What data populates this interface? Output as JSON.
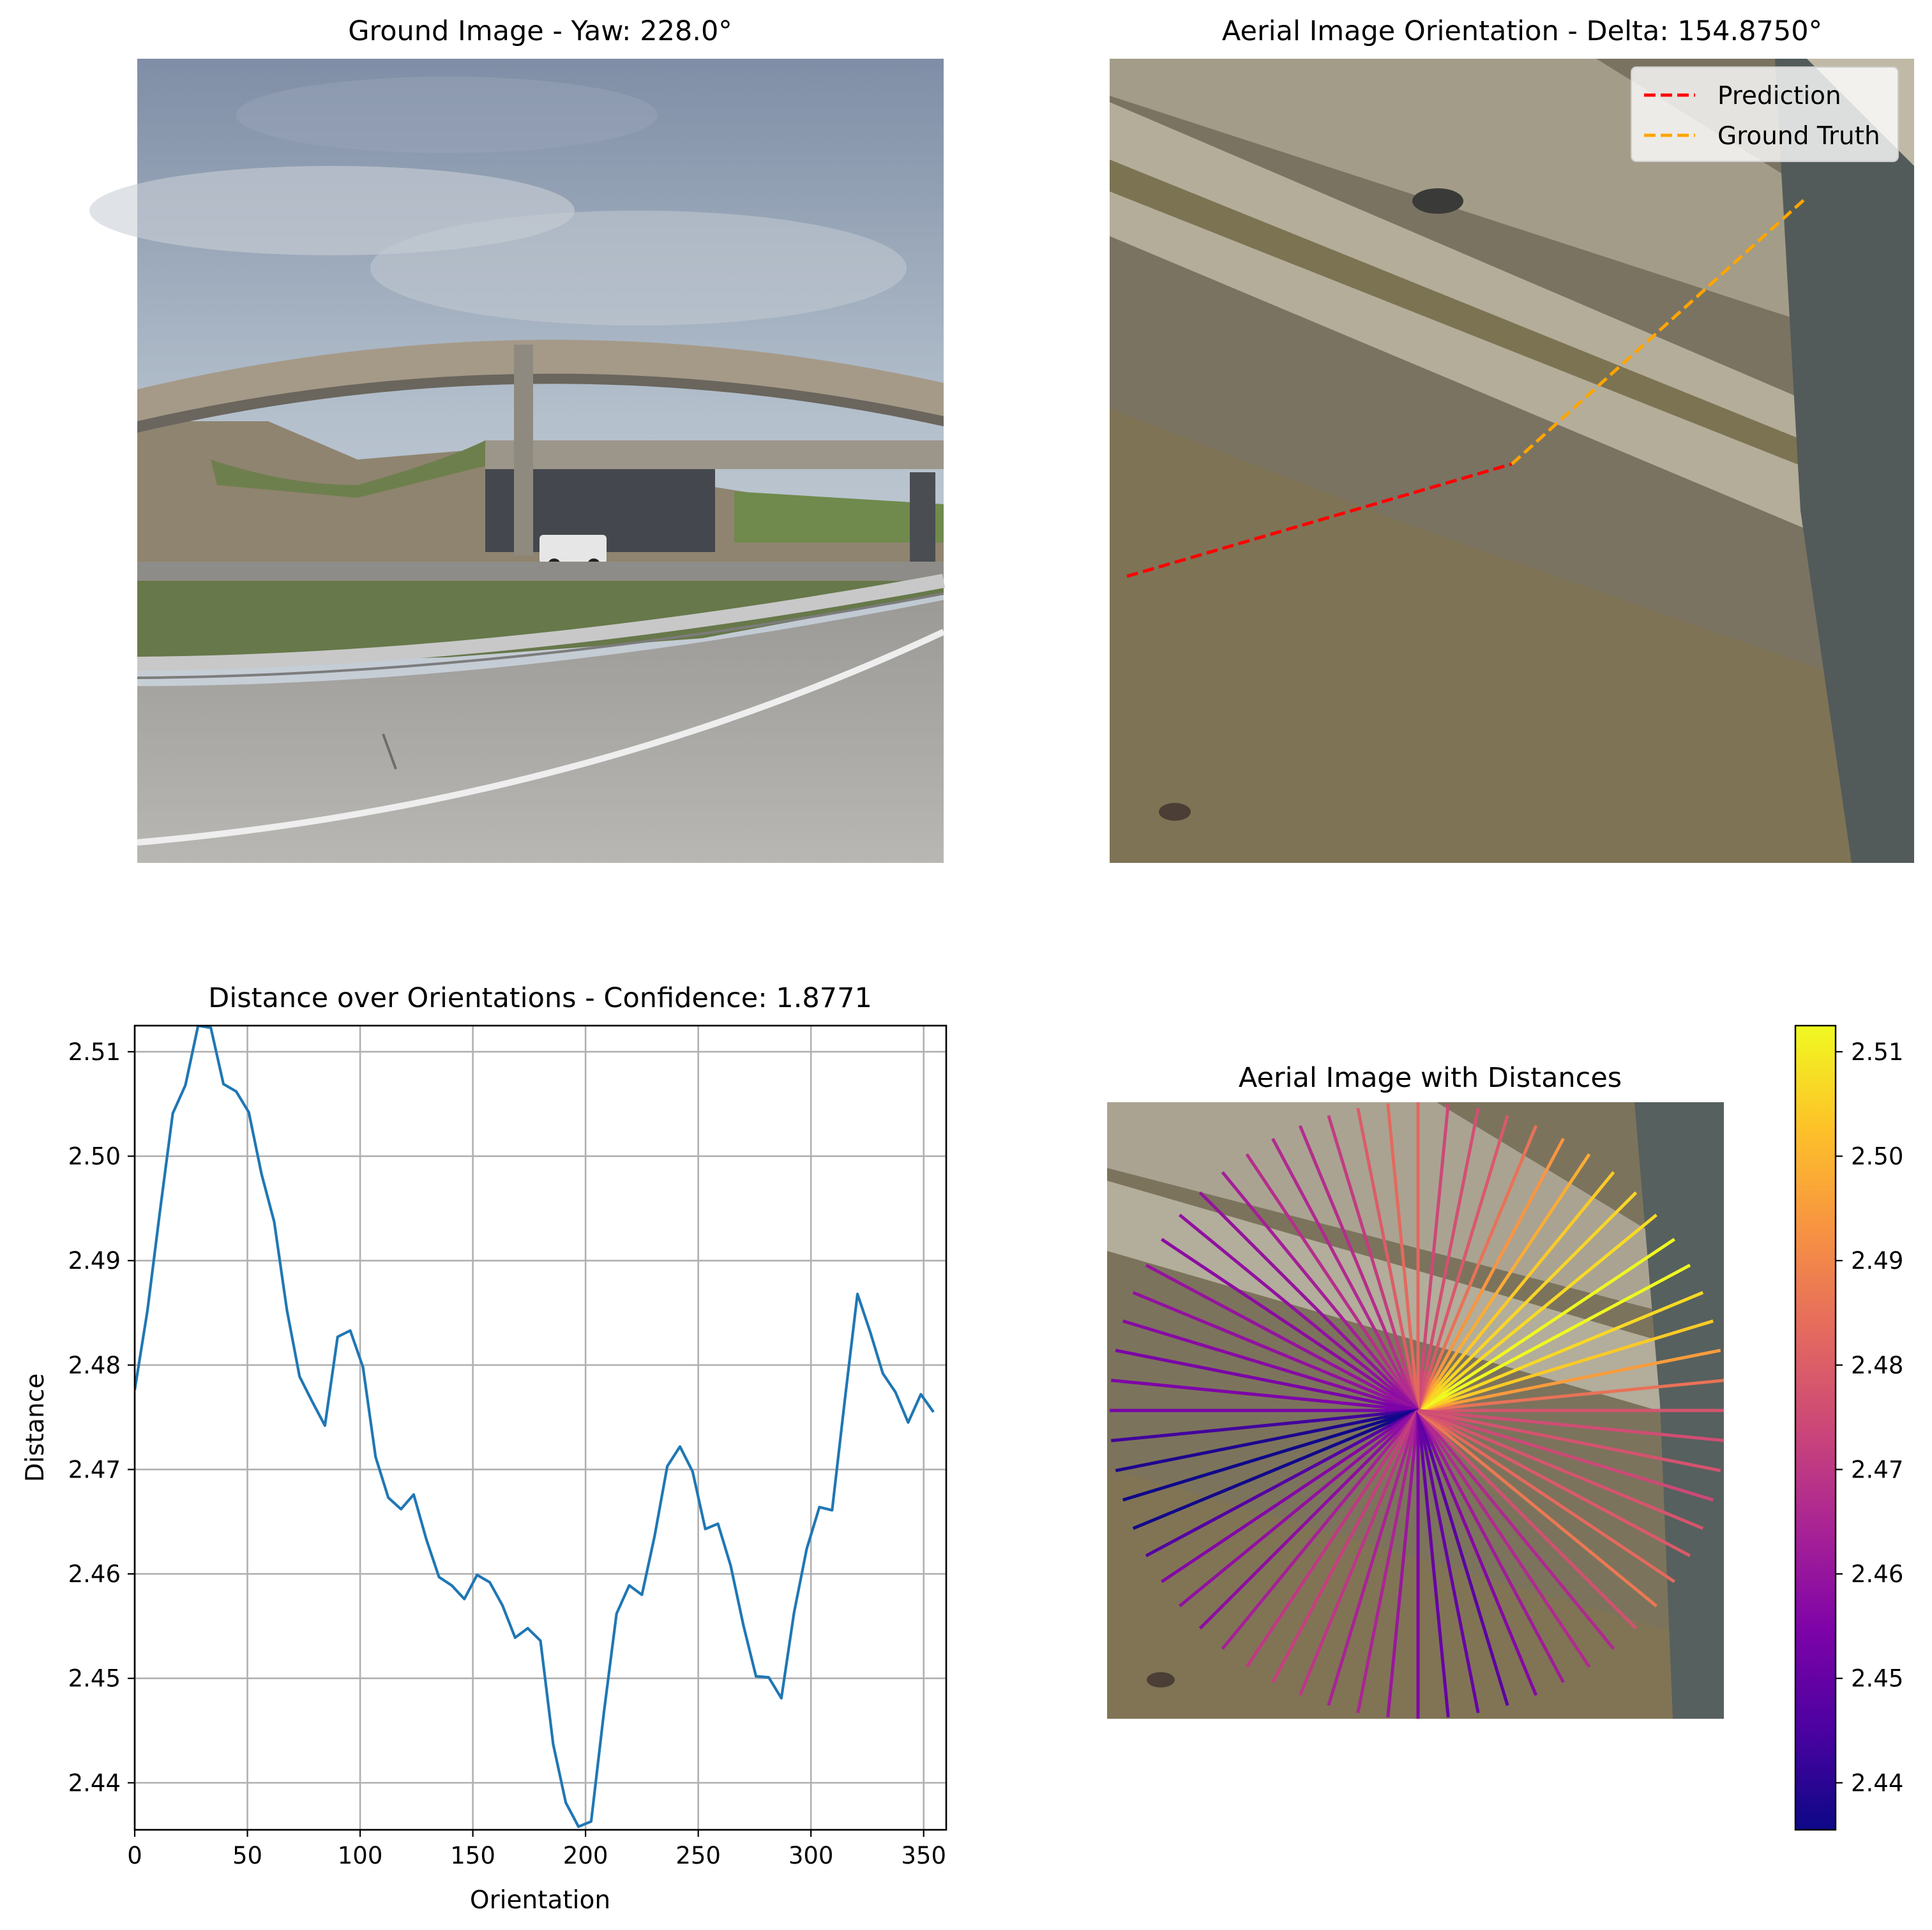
{
  "panels": {
    "ground": {
      "title": "Ground Image - Yaw: 228.0°"
    },
    "aerial": {
      "title": "Aerial Image Orientation - Delta: 154.8750°",
      "legend": {
        "placement": "upper right",
        "entries": [
          "Prediction",
          "Ground Truth"
        ]
      }
    },
    "distance_plot": {
      "title": "Distance over Orientations - Confidence: 1.8771"
    },
    "aerial_dist": {
      "title": "Aerial Image with Distances"
    },
    "colorbar": {
      "cmap": "plasma",
      "range": [
        2.4355,
        2.5125
      ],
      "ticks": [
        "2.44",
        "2.45",
        "2.46",
        "2.47",
        "2.48",
        "2.49",
        "2.50",
        "2.51"
      ]
    }
  },
  "colors": {
    "series": "#1f77b4",
    "prediction": "#ff0000",
    "ground_truth": "#ffa500",
    "grid": "#b0b0b0"
  },
  "chart_data": [
    {
      "type": "line",
      "title": "Distance over Orientations - Confidence: 1.8771",
      "xlabel": "Orientation",
      "ylabel": "Distance",
      "xlim": [
        0,
        360
      ],
      "ylim": [
        2.4355,
        2.5125
      ],
      "grid": true,
      "xticks": [
        "0",
        "50",
        "100",
        "150",
        "200",
        "250",
        "300",
        "350"
      ],
      "yticks": [
        "2.44",
        "2.45",
        "2.46",
        "2.47",
        "2.48",
        "2.49",
        "2.50",
        "2.51"
      ],
      "x": [
        0,
        5.625,
        11.25,
        16.875,
        22.5,
        28.125,
        33.75,
        39.375,
        45,
        50.625,
        56.25,
        61.875,
        67.5,
        73.125,
        78.75,
        84.375,
        90,
        95.625,
        101.25,
        106.875,
        112.5,
        118.125,
        123.75,
        129.375,
        135,
        140.625,
        146.25,
        151.875,
        157.5,
        163.125,
        168.75,
        174.375,
        180,
        185.625,
        191.25,
        196.875,
        202.5,
        208.125,
        213.75,
        219.375,
        225,
        230.625,
        236.25,
        241.875,
        247.5,
        253.125,
        258.75,
        264.375,
        270,
        275.625,
        281.25,
        286.875,
        292.5,
        298.125,
        303.75,
        309.375,
        315,
        320.625,
        326.25,
        331.875,
        337.5,
        343.125,
        348.75,
        354.375
      ],
      "series": [
        {
          "values": [
            2.4776,
            2.4852,
            2.4948,
            2.5041,
            2.5068,
            2.5125,
            2.5123,
            2.5069,
            2.5062,
            2.5042,
            2.4983,
            2.4937,
            2.4853,
            2.4789,
            2.4765,
            2.4742,
            2.4827,
            2.4833,
            2.4798,
            2.4712,
            2.4673,
            2.4662,
            2.4676,
            2.4633,
            2.4597,
            2.4589,
            2.4576,
            2.4599,
            2.4592,
            2.457,
            2.4539,
            2.4548,
            2.4536,
            2.4437,
            2.4381,
            2.4358,
            2.4363,
            2.4467,
            2.4562,
            2.4589,
            2.458,
            2.4636,
            2.4703,
            2.4722,
            2.4698,
            2.4643,
            2.4648,
            2.4608,
            2.4551,
            2.4502,
            2.4501,
            2.4481,
            2.4563,
            2.4624,
            2.4664,
            2.4661,
            2.4766,
            2.4868,
            2.4832,
            2.4792,
            2.4774,
            2.4745,
            2.4772,
            2.4755
          ]
        }
      ]
    },
    {
      "type": "line",
      "title": "Aerial Image Orientation - Delta: 154.8750°",
      "series": [
        {
          "name": "Prediction",
          "style": "dashed",
          "angle_deg": 154.875
        },
        {
          "name": "Ground Truth",
          "style": "dashed",
          "angle_deg": 228.0
        }
      ]
    }
  ]
}
